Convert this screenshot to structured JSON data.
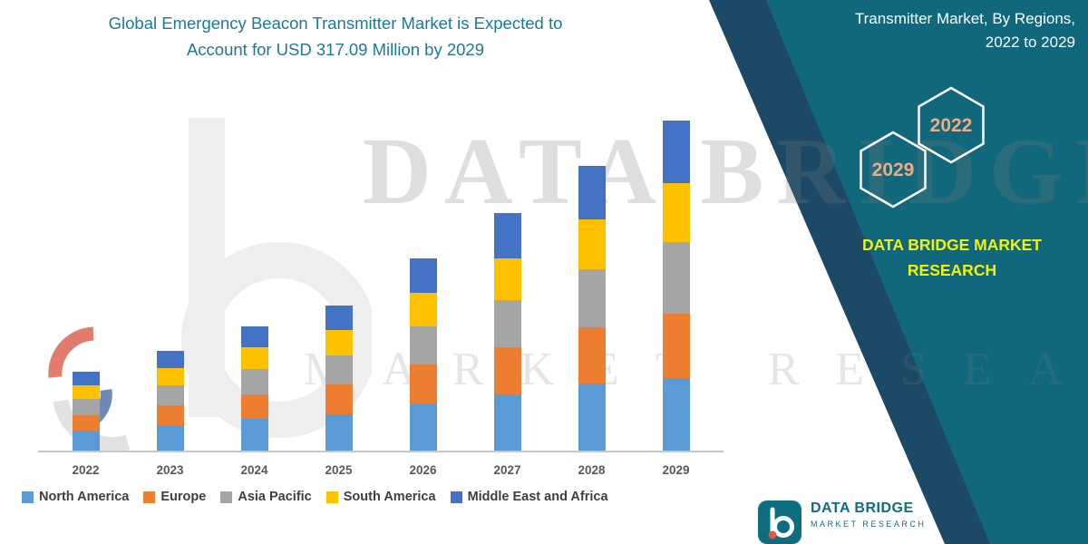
{
  "title": {
    "line1": "Global Emergency Beacon Transmitter Market is Expected to",
    "line2": "Account for USD 317.09 Million by 2029",
    "color": "#1B7A96"
  },
  "side_panel": {
    "background_color": "#11677B",
    "accent_color": "#1C4A66",
    "heading_line1": "Transmitter Market, By Regions,",
    "heading_line2": "2022 to 2029",
    "hexagon_years": [
      "2029",
      "2022"
    ],
    "hexagon_text_color": "#EDAC85",
    "brand_line1": "DATA BRIDGE MARKET",
    "brand_line2": "RESEARCH",
    "brand_text_color": "#F2F20C"
  },
  "watermark": {
    "line1": "DATA BRIDGE",
    "line2": "MARKET RESEARCH"
  },
  "footer_logo": {
    "brand": "DATA BRIDGE",
    "sub_brand": "MARKET RESEARCH"
  },
  "chart_data": {
    "type": "bar",
    "stacked": true,
    "title": "Global Emergency Beacon Transmitter Market is Expected to Account for USD 317.09 Million by 2029",
    "unit": "USD Million",
    "categories": [
      "2022",
      "2023",
      "2024",
      "2025",
      "2026",
      "2027",
      "2028",
      "2029"
    ],
    "series": [
      {
        "name": "North America",
        "color": "#5B9BD5",
        "values": [
          20,
          25,
          31,
          36,
          46,
          55,
          65,
          70
        ]
      },
      {
        "name": "Europe",
        "color": "#ED7D31",
        "values": [
          15,
          19,
          24,
          28,
          37,
          45,
          54,
          62
        ]
      },
      {
        "name": "Asia Pacific",
        "color": "#A5A5A5",
        "values": [
          15,
          19,
          24,
          28,
          37,
          45,
          55,
          68
        ]
      },
      {
        "name": "South America",
        "color": "#FFC000",
        "values": [
          13,
          17,
          21,
          24,
          32,
          40,
          48,
          57
        ]
      },
      {
        "name": "Middle East and Africa",
        "color": "#4472C4",
        "values": [
          13,
          16,
          20,
          24,
          33,
          43,
          51,
          60
        ]
      }
    ],
    "totals": [
      76,
      96,
      120,
      140,
      185,
      228,
      273,
      317
    ],
    "ylim": [
      0,
      340
    ],
    "gridlines": false,
    "legend_position": "bottom"
  }
}
